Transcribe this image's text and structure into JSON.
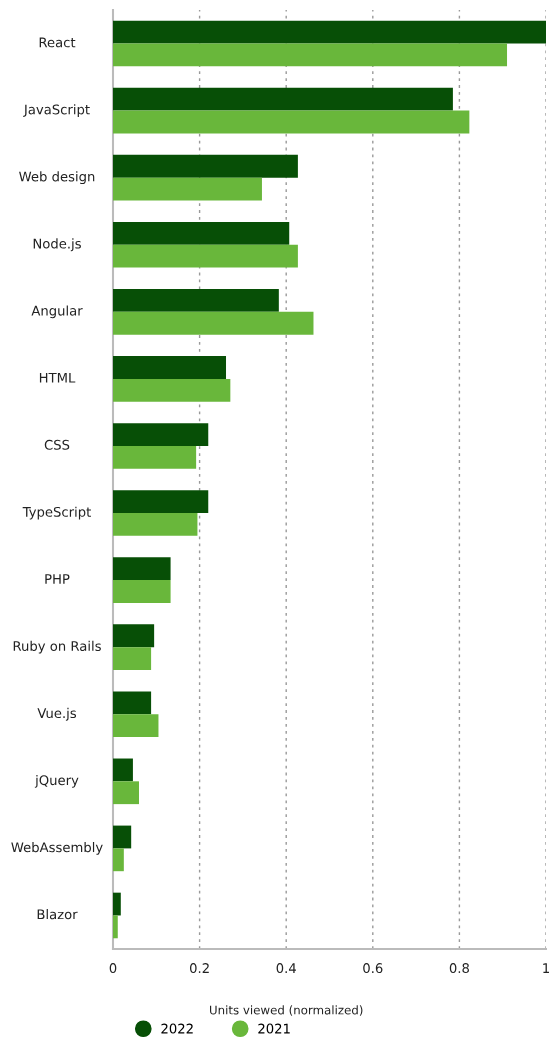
{
  "chart_data": {
    "type": "bar",
    "orientation": "horizontal",
    "xlabel": "Units viewed (normalized)",
    "categories": [
      "React",
      "JavaScript",
      "Web design",
      "Node.js",
      "Angular",
      "HTML",
      "CSS",
      "TypeScript",
      "PHP",
      "Ruby on Rails",
      "Vue.js",
      "jQuery",
      "WebAssembly",
      "Blazor"
    ],
    "series": [
      {
        "name": "2022",
        "color": "#074f06",
        "values": [
          1.0,
          0.785,
          0.427,
          0.407,
          0.383,
          0.261,
          0.22,
          0.22,
          0.133,
          0.095,
          0.088,
          0.046,
          0.042,
          0.018
        ]
      },
      {
        "name": "2021",
        "color": "#69b73b",
        "values": [
          0.91,
          0.823,
          0.344,
          0.427,
          0.463,
          0.271,
          0.192,
          0.195,
          0.133,
          0.088,
          0.105,
          0.06,
          0.025,
          0.011
        ]
      }
    ],
    "xlim": [
      0,
      1
    ],
    "xticks": [
      0,
      0.2,
      0.4,
      0.6,
      0.8,
      1
    ],
    "grid": "x",
    "legend": "bottom"
  }
}
